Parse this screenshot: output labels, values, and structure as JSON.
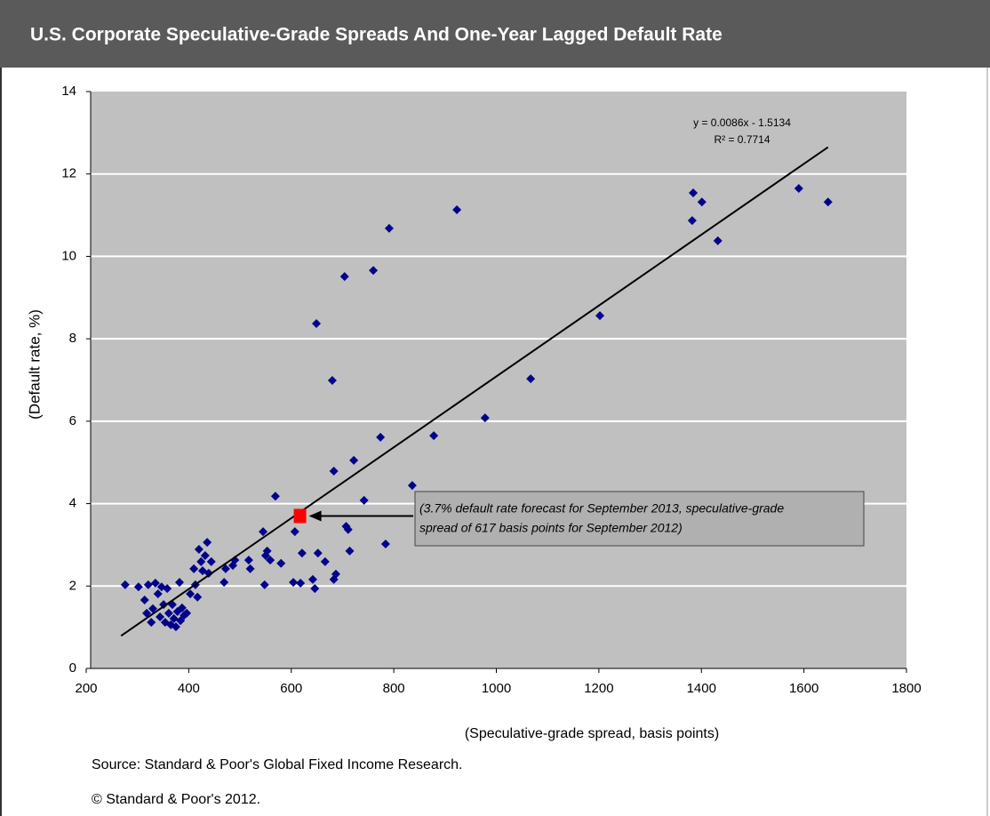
{
  "chart_data": {
    "type": "scatter",
    "title": "U.S. Corporate Speculative-Grade Spreads And One-Year Lagged Default Rate",
    "x_label": "(Speculative-grade spread, basis points)",
    "y_label": "(Default rate, %)",
    "x": [
      276,
      302,
      314,
      321,
      318,
      327,
      330,
      335,
      340,
      344,
      347,
      351,
      354,
      358,
      361,
      365,
      368,
      371,
      375,
      378,
      382,
      384,
      387,
      391,
      396,
      403,
      410,
      413,
      417,
      420,
      424,
      427,
      432,
      436,
      439,
      444,
      469,
      472,
      486,
      490,
      517,
      520,
      545,
      548,
      550,
      553,
      559,
      569,
      580,
      607,
      604,
      618,
      621,
      642,
      646,
      649,
      652,
      666,
      680,
      683,
      683,
      687,
      704,
      707,
      711,
      714,
      722,
      742,
      760,
      774,
      784,
      791,
      836,
      878,
      923,
      978,
      1067,
      1202,
      1382,
      1384,
      1401,
      1432,
      1590,
      1647
    ],
    "y": [
      2.03,
      1.98,
      1.66,
      2.03,
      1.34,
      1.12,
      1.45,
      2.07,
      1.81,
      1.25,
      1.98,
      1.55,
      1.12,
      1.94,
      1.34,
      1.06,
      1.55,
      1.21,
      1.01,
      1.38,
      2.09,
      1.16,
      1.47,
      1.29,
      1.34,
      1.81,
      2.42,
      2.03,
      1.73,
      2.89,
      2.59,
      2.37,
      2.74,
      3.06,
      2.31,
      2.59,
      2.09,
      2.42,
      2.5,
      2.63,
      2.63,
      2.42,
      3.32,
      2.03,
      2.74,
      2.85,
      2.63,
      4.18,
      2.55,
      3.32,
      2.09,
      2.07,
      2.8,
      2.16,
      1.94,
      8.37,
      2.8,
      2.59,
      6.99,
      4.79,
      2.16,
      2.29,
      9.51,
      3.45,
      3.37,
      2.85,
      5.05,
      4.08,
      9.66,
      5.61,
      3.02,
      10.68,
      4.44,
      5.65,
      11.13,
      6.08,
      7.03,
      8.56,
      10.87,
      11.54,
      11.32,
      10.38,
      11.65,
      11.32
    ],
    "color": "#00008b",
    "highlight": {
      "x": 617,
      "y": 3.7,
      "color": "#ff0000"
    },
    "trendline": {
      "equation": "y = 0.0086x - 1.5134",
      "r2": "R² = 0.7714",
      "slope": 0.0086,
      "intercept": -1.5134,
      "x": [
        268,
        1647
      ]
    },
    "annotation": [
      "(3.7% default rate forecast for September 2013, speculative-grade",
      "spread of 617 basis points for September 2012)"
    ],
    "xlim": [
      200,
      1800
    ],
    "xticks": [
      200,
      400,
      600,
      800,
      1000,
      1200,
      1400,
      1600,
      1800
    ],
    "ylim": [
      0,
      14
    ],
    "yticks": [
      0,
      2,
      4,
      6,
      8,
      10,
      12,
      14
    ],
    "grid": true,
    "source": "Source: Standard & Poor's Global Fixed Income Research.",
    "copyright": "© Standard & Poor's 2012."
  }
}
